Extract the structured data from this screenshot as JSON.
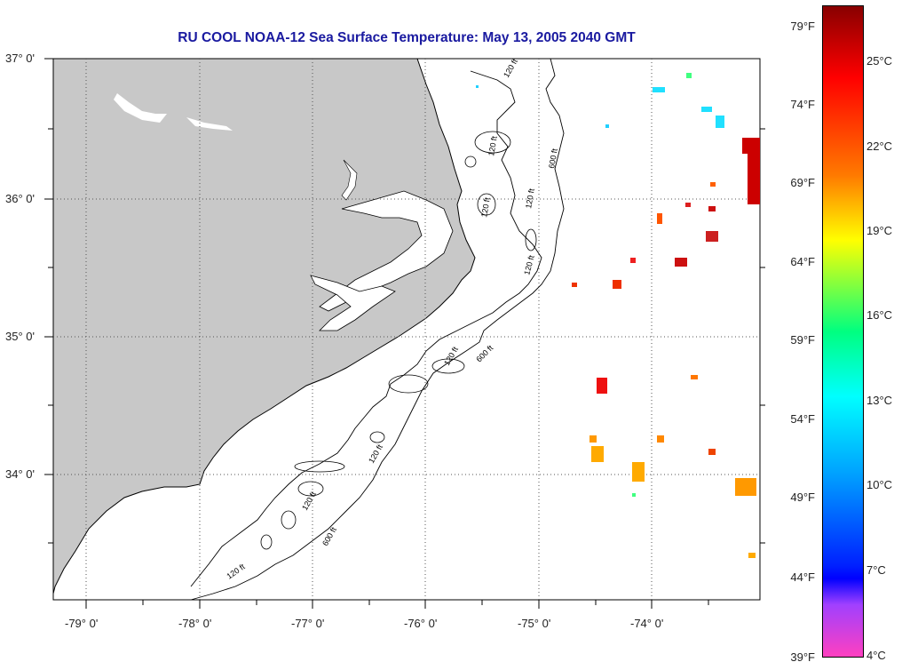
{
  "title": "RU COOL  NOAA-12  Sea Surface Temperature:  May 13, 2005 2040 GMT",
  "lat_labels": [
    "37° 0'",
    "36° 0'",
    "35° 0'",
    "34° 0'"
  ],
  "lon_labels": [
    "-79° 0'",
    "-78° 0'",
    "-77° 0'",
    "-76° 0'",
    "-75° 0'",
    "-74° 0'"
  ],
  "contour_labels": [
    "120 ft",
    "600 ft"
  ],
  "colorbar": {
    "fahrenheit": [
      "79°F",
      "74°F",
      "69°F",
      "64°F",
      "59°F",
      "54°F",
      "49°F",
      "44°F",
      "39°F"
    ],
    "celsius": [
      "25°C",
      "22°C",
      "19°C",
      "16°C",
      "13°C",
      "10°C",
      "7°C",
      "4°C"
    ]
  },
  "colors": {
    "land": "#c8c8c8",
    "title": "#1a1aa0",
    "warm": "#ff0000",
    "cool": "#00e0ff"
  }
}
